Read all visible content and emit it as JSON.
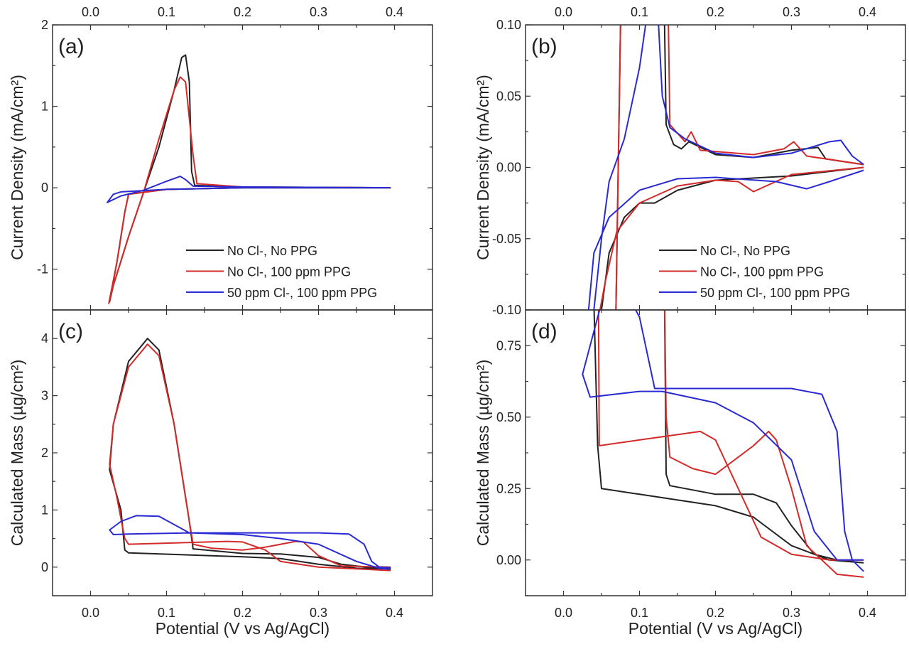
{
  "colors": {
    "black": "#222222",
    "red": "#d42a2a",
    "blue": "#2a2ad4"
  },
  "legend": [
    "No Cl-, No PPG",
    "No Cl-, 100 ppm PPG",
    "50 ppm Cl-, 100 ppm PPG"
  ],
  "xlabel": "Potential (V vs Ag/AgCl)",
  "chart_data": [
    {
      "panel": "(a)",
      "type": "line",
      "ylabel": "Current Density (mA/cm²)",
      "xlim": [
        -0.05,
        0.45
      ],
      "ylim": [
        -1.5,
        2
      ],
      "xticks": [
        "0.0",
        "0.1",
        "0.2",
        "0.3",
        "0.4"
      ],
      "yticks": [
        "-1",
        "0",
        "1",
        "2"
      ],
      "ytick_values": [
        -1,
        0,
        1,
        2
      ],
      "xtick_position": "top",
      "legend_position": "bottom-right",
      "series": [
        {
          "name": "No Cl-, No PPG",
          "color": "black",
          "x": [
            0.395,
            0.2,
            0.1,
            0.05,
            0.045,
            0.035,
            0.025,
            0.03,
            0.05,
            0.07,
            0.09,
            0.11,
            0.12,
            0.125,
            0.13,
            0.133,
            0.137,
            0.2,
            0.395
          ],
          "y": [
            0,
            0,
            -0.02,
            -0.08,
            -0.3,
            -0.9,
            -1.4,
            -1.2,
            -0.6,
            -0.05,
            0.5,
            1.2,
            1.6,
            1.63,
            1.3,
            0.2,
            0.03,
            0.01,
            0
          ]
        },
        {
          "name": "No Cl-, 100 ppm PPG",
          "color": "red",
          "x": [
            0.395,
            0.2,
            0.1,
            0.05,
            0.045,
            0.035,
            0.024,
            0.03,
            0.05,
            0.07,
            0.09,
            0.11,
            0.118,
            0.125,
            0.135,
            0.14,
            0.2,
            0.395
          ],
          "y": [
            0,
            0,
            -0.02,
            -0.08,
            -0.3,
            -0.9,
            -1.42,
            -1.2,
            -0.6,
            -0.05,
            0.6,
            1.2,
            1.36,
            1.3,
            0.4,
            0.05,
            0.01,
            0
          ]
        },
        {
          "name": "50 ppm Cl-, 100 ppm PPG",
          "color": "blue",
          "x": [
            0.395,
            0.2,
            0.1,
            0.04,
            0.03,
            0.022,
            0.04,
            0.07,
            0.1,
            0.118,
            0.125,
            0.135,
            0.2,
            0.395
          ],
          "y": [
            0,
            0,
            -0.02,
            -0.05,
            -0.08,
            -0.18,
            -0.1,
            -0.03,
            0.08,
            0.14,
            0.1,
            0.02,
            0.01,
            0
          ]
        }
      ]
    },
    {
      "panel": "(b)",
      "type": "line",
      "ylabel": "Current Density (mA/cm²)",
      "xlim": [
        -0.05,
        0.45
      ],
      "ylim": [
        -0.1,
        0.1
      ],
      "xticks": [
        "0.0",
        "0.1",
        "0.2",
        "0.3",
        "0.4"
      ],
      "yticks": [
        "-0.10",
        "-0.05",
        "0.00",
        "0.05",
        "0.10"
      ],
      "ytick_values": [
        -0.1,
        -0.05,
        0,
        0.05,
        0.1
      ],
      "xtick_position": "top",
      "legend_position": "bottom-right",
      "series": [
        {
          "name": "No Cl-, No PPG",
          "color": "black",
          "x": [
            0.395,
            0.3,
            0.2,
            0.15,
            0.12,
            0.1,
            0.08,
            0.06,
            0.05,
            0.045,
            0.066,
            0.075,
            0.08,
            0.133,
            0.135,
            0.145,
            0.155,
            0.165,
            0.2,
            0.25,
            0.3,
            0.335,
            0.345,
            0.395
          ],
          "y": [
            0,
            -0.006,
            -0.009,
            -0.016,
            -0.025,
            -0.025,
            -0.035,
            -0.06,
            -0.1,
            -0.2,
            -0.2,
            0.1,
            0.3,
            0.1,
            0.03,
            0.016,
            0.013,
            0.018,
            0.009,
            0.007,
            0.012,
            0.014,
            0.006,
            0.002
          ]
        },
        {
          "name": "No Cl-, 100 ppm PPG",
          "color": "red",
          "x": [
            0.395,
            0.3,
            0.25,
            0.23,
            0.2,
            0.15,
            0.1,
            0.07,
            0.055,
            0.048,
            0.045,
            0.066,
            0.075,
            0.08,
            0.138,
            0.14,
            0.16,
            0.168,
            0.18,
            0.25,
            0.29,
            0.303,
            0.32,
            0.395
          ],
          "y": [
            0,
            -0.005,
            -0.017,
            -0.01,
            -0.009,
            -0.013,
            -0.025,
            -0.045,
            -0.08,
            -0.1,
            -0.2,
            -0.2,
            0.1,
            0.3,
            0.1,
            0.03,
            0.018,
            0.025,
            0.012,
            0.009,
            0.013,
            0.018,
            0.008,
            0.002
          ]
        },
        {
          "name": "50 ppm Cl-, 100 ppm PPG",
          "color": "blue",
          "x": [
            0.395,
            0.35,
            0.32,
            0.28,
            0.2,
            0.15,
            0.1,
            0.06,
            0.04,
            0.033,
            0.03,
            0.04,
            0.05,
            0.06,
            0.08,
            0.1,
            0.108,
            0.115,
            0.125,
            0.13,
            0.14,
            0.16,
            0.2,
            0.25,
            0.3,
            0.35,
            0.365,
            0.38,
            0.395
          ],
          "y": [
            -0.002,
            -0.01,
            -0.015,
            -0.01,
            -0.007,
            -0.008,
            -0.016,
            -0.035,
            -0.06,
            -0.1,
            -0.2,
            -0.1,
            -0.05,
            -0.01,
            0.02,
            0.07,
            0.1,
            0.2,
            0.1,
            0.05,
            0.028,
            0.02,
            0.01,
            0.007,
            0.01,
            0.018,
            0.019,
            0.008,
            0.002
          ]
        }
      ]
    },
    {
      "panel": "(c)",
      "type": "line",
      "ylabel": "Calculated Mass (µg/cm²)",
      "xlim": [
        -0.05,
        0.45
      ],
      "ylim": [
        -0.5,
        4.5
      ],
      "xticks": [
        "0.0",
        "0.1",
        "0.2",
        "0.3",
        "0.4"
      ],
      "yticks": [
        "0",
        "1",
        "2",
        "3",
        "4"
      ],
      "ytick_values": [
        0,
        1,
        2,
        3,
        4
      ],
      "xtick_position": "bottom",
      "series": [
        {
          "name": "No Cl-, No PPG",
          "color": "black",
          "x": [
            0.395,
            0.35,
            0.3,
            0.25,
            0.2,
            0.05,
            0.045,
            0.04,
            0.025,
            0.03,
            0.05,
            0.075,
            0.09,
            0.11,
            0.13,
            0.135,
            0.2,
            0.25,
            0.3,
            0.33,
            0.37,
            0.395
          ],
          "y": [
            -0.03,
            -0.02,
            0.05,
            0.15,
            0.18,
            0.25,
            0.3,
            1,
            1.7,
            2.5,
            3.6,
            4.0,
            3.8,
            2.5,
            0.8,
            0.32,
            0.24,
            0.23,
            0.17,
            0.05,
            -0.01,
            -0.02
          ]
        },
        {
          "name": "No Cl-, 100 ppm PPG",
          "color": "red",
          "x": [
            0.395,
            0.35,
            0.3,
            0.25,
            0.23,
            0.2,
            0.18,
            0.05,
            0.045,
            0.035,
            0.025,
            0.03,
            0.05,
            0.075,
            0.09,
            0.11,
            0.13,
            0.135,
            0.16,
            0.2,
            0.23,
            0.27,
            0.28,
            0.3,
            0.33,
            0.395
          ],
          "y": [
            -0.06,
            -0.03,
            0,
            0.1,
            0.3,
            0.44,
            0.45,
            0.4,
            0.5,
            1.2,
            1.8,
            2.5,
            3.5,
            3.9,
            3.7,
            2.5,
            0.8,
            0.4,
            0.33,
            0.3,
            0.35,
            0.45,
            0.44,
            0.2,
            0.02,
            0
          ]
        },
        {
          "name": "50 ppm Cl-, 100 ppm PPG",
          "color": "blue",
          "x": [
            0.395,
            0.38,
            0.35,
            0.3,
            0.25,
            0.2,
            0.13,
            0.05,
            0.03,
            0.025,
            0.04,
            0.06,
            0.09,
            0.13,
            0.2,
            0.3,
            0.34,
            0.36,
            0.37,
            0.38,
            0.395
          ],
          "y": [
            -0.04,
            -0.02,
            0.1,
            0.4,
            0.5,
            0.57,
            0.6,
            0.58,
            0.57,
            0.65,
            0.8,
            0.9,
            0.89,
            0.6,
            0.6,
            0.6,
            0.58,
            0.4,
            0.1,
            0,
            -0.01
          ]
        }
      ]
    },
    {
      "panel": "(d)",
      "type": "line",
      "ylabel": "Calculated Mass (µg/cm²)",
      "xlim": [
        -0.05,
        0.45
      ],
      "ylim": [
        -0.125,
        0.875
      ],
      "xticks": [
        "0.0",
        "0.1",
        "0.2",
        "0.3",
        "0.4"
      ],
      "yticks": [
        "0.00",
        "0.25",
        "0.50",
        "0.75"
      ],
      "ytick_values": [
        0,
        0.25,
        0.5,
        0.75
      ],
      "xtick_position": "bottom",
      "series": [
        {
          "name": "No Cl-, No PPG",
          "color": "black",
          "x": [
            0.395,
            0.35,
            0.3,
            0.25,
            0.2,
            0.1,
            0.05,
            0.045,
            0.04,
            0.035,
            0.13,
            0.133,
            0.135,
            0.14,
            0.2,
            0.25,
            0.28,
            0.3,
            0.33,
            0.36,
            0.395
          ],
          "y": [
            -0.01,
            0,
            0.05,
            0.15,
            0.19,
            0.23,
            0.25,
            0.4,
            0.9,
            1.5,
            1.5,
            0.9,
            0.3,
            0.26,
            0.23,
            0.23,
            0.2,
            0.12,
            0.02,
            0,
            -0.01
          ]
        },
        {
          "name": "No Cl-, 100 ppm PPG",
          "color": "red",
          "x": [
            0.395,
            0.36,
            0.34,
            0.32,
            0.3,
            0.28,
            0.27,
            0.25,
            0.2,
            0.17,
            0.14,
            0.135,
            0.133,
            0.13,
            0.045,
            0.047,
            0.1,
            0.18,
            0.2,
            0.23,
            0.26,
            0.3,
            0.35,
            0.395
          ],
          "y": [
            -0.06,
            -0.05,
            0,
            0.05,
            0.25,
            0.42,
            0.45,
            0.4,
            0.3,
            0.32,
            0.36,
            0.5,
            0.9,
            1.5,
            1.5,
            0.4,
            0.42,
            0.45,
            0.42,
            0.25,
            0.08,
            0.02,
            0,
            0
          ]
        },
        {
          "name": "50 ppm Cl-, 100 ppm PPG",
          "color": "blue",
          "x": [
            0.395,
            0.38,
            0.37,
            0.36,
            0.34,
            0.3,
            0.2,
            0.12,
            0.1,
            0.09,
            0.07,
            0.05,
            0.03,
            0.025,
            0.035,
            0.1,
            0.13,
            0.2,
            0.25,
            0.3,
            0.33,
            0.36,
            0.395
          ],
          "y": [
            -0.04,
            0,
            0.1,
            0.45,
            0.58,
            0.6,
            0.6,
            0.6,
            0.85,
            0.9,
            1.0,
            0.9,
            0.7,
            0.65,
            0.57,
            0.59,
            0.59,
            0.55,
            0.48,
            0.35,
            0.1,
            0,
            0
          ]
        }
      ]
    }
  ]
}
